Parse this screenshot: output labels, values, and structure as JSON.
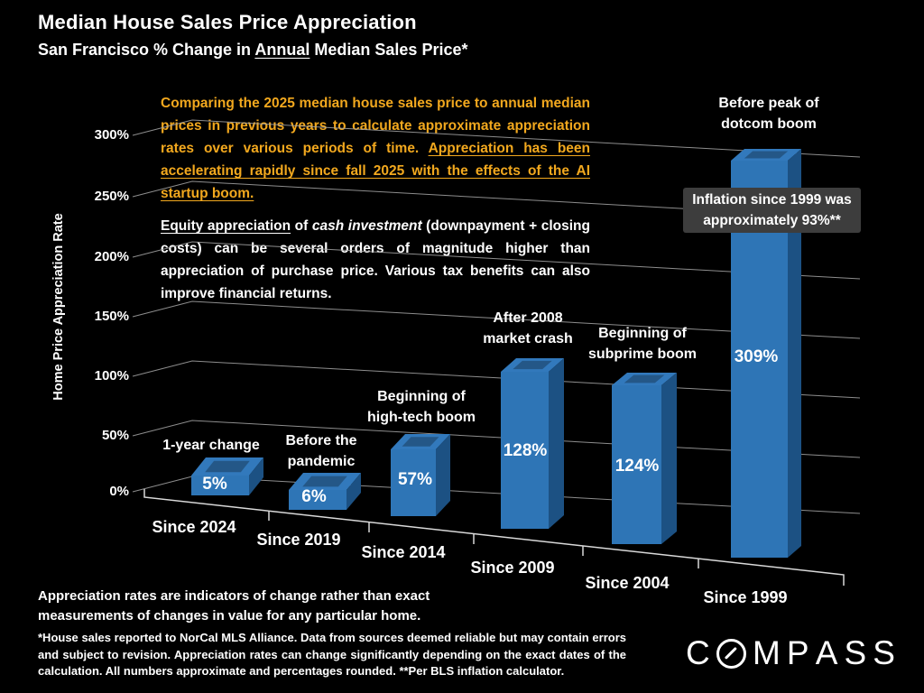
{
  "title": "Median House Sales Price Appreciation",
  "subtitle": {
    "part1": "San Francisco % Change in ",
    "underlined": "Annual",
    "part3": " Median Sales Price*"
  },
  "orange_note": {
    "normal": "Comparing the 2025 median house sales price to annual median prices in previous years to calculate approximate appreciation rates over various periods of time. ",
    "underlined": "Appreciation has been accelerating rapidly since fall 2025 with the effects of the AI startup boom."
  },
  "white_note": {
    "underlined": "Equity appreciation",
    "mid": " of ",
    "italic": "cash investment",
    "rest": " (downpayment + closing costs) can be several orders of magnitude higher than appreciation of purchase price. Various tax benefits can also improve financial returns."
  },
  "inflation_callout": "Inflation since 1999 was\napproximately 93%**",
  "chart_data": {
    "type": "bar",
    "style": "3d-column",
    "title": "Median House Sales Price Appreciation",
    "ylabel": "Home Price Appreciation Rate",
    "categories": [
      "Since 2024",
      "Since 2019",
      "Since 2014",
      "Since 2009",
      "Since 2004",
      "Since 1999"
    ],
    "values": [
      5,
      6,
      57,
      128,
      124,
      309
    ],
    "value_labels": [
      "5%",
      "6%",
      "57%",
      "128%",
      "124%",
      "309%"
    ],
    "bar_annotations": [
      "1-year change",
      "Before the\npandemic",
      "Beginning of\nhigh-tech boom",
      "After 2008\nmarket crash",
      "Beginning of\nsubprime boom",
      "Before peak of\ndotcom boom"
    ],
    "yticks": [
      "0%",
      "50%",
      "100%",
      "150%",
      "200%",
      "250%",
      "300%"
    ],
    "ylim": [
      0,
      300
    ],
    "grid": true,
    "legend": "none"
  },
  "footer": {
    "note": "Appreciation rates are indicators of change rather than exact\nmeasurements of changes in value for any particular home.",
    "disclaimer": "*House sales reported to NorCal MLS Alliance. Data from sources deemed reliable but may contain errors and subject to revision. Appreciation rates can change significantly depending on the exact dates of the calculation. All numbers approximate and percentages rounded. **Per BLS inflation calculator."
  },
  "brand": "COMPASS",
  "colors": {
    "background": "#000000",
    "bar_front": "#2E75B6",
    "bar_side": "#1C5183",
    "bar_top": "#3279BC",
    "grid": "#A6A6A6",
    "axis": "#D9D9D9",
    "note_orange": "#F2A81E",
    "callout_bg": "#3D3D3D",
    "text": "#FFFFFF"
  }
}
